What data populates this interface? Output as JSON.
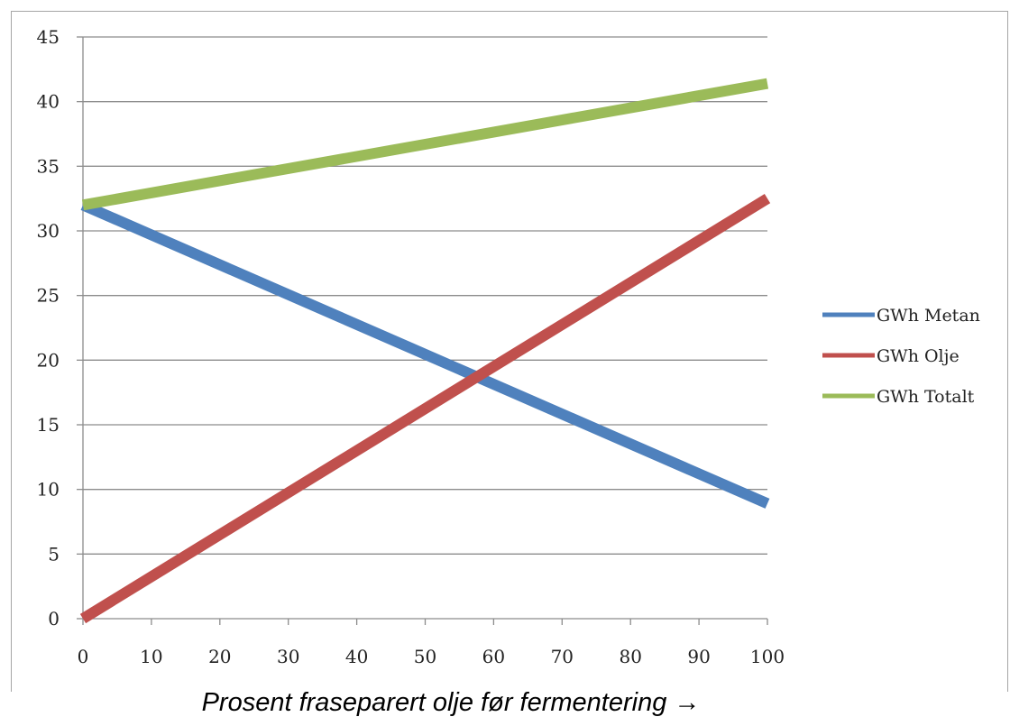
{
  "chart_data": {
    "type": "line",
    "title": "",
    "xlabel": "Prosent fraseparert olje før fermentering →",
    "ylabel": "",
    "xlim": [
      0,
      100
    ],
    "ylim": [
      0,
      45
    ],
    "x_ticks": [
      0,
      10,
      20,
      30,
      40,
      50,
      60,
      70,
      80,
      90,
      100
    ],
    "y_ticks": [
      0,
      5,
      10,
      15,
      20,
      25,
      30,
      35,
      40,
      45
    ],
    "grid": "horizontal",
    "legend_position": "right",
    "x": [
      0,
      100
    ],
    "series": [
      {
        "name": "GWh Metan",
        "color": "#4f81bd",
        "values": [
          32,
          8.9
        ]
      },
      {
        "name": "GWh Olje",
        "color": "#c0504d",
        "values": [
          0,
          32.5
        ]
      },
      {
        "name": "GWh Totalt",
        "color": "#9bbb59",
        "values": [
          32,
          41.4
        ]
      }
    ]
  }
}
